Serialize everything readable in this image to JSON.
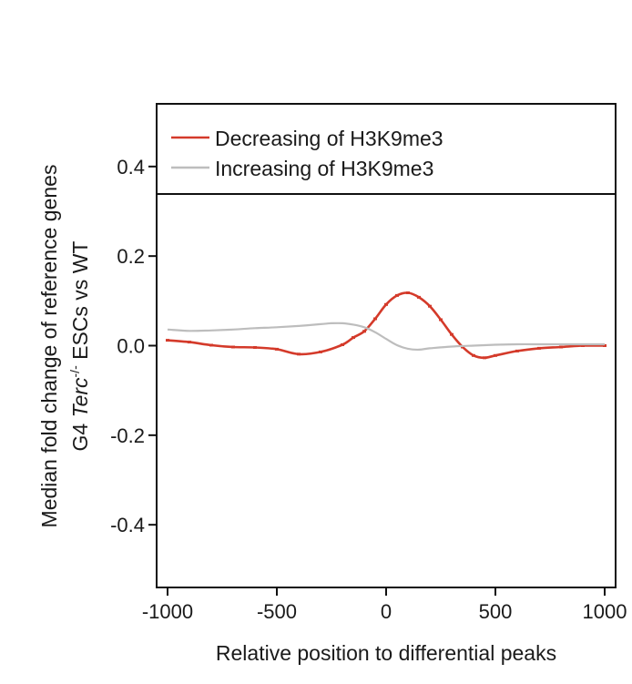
{
  "chart_data": {
    "type": "line",
    "title": "",
    "xlabel": "Relative position to differential peaks",
    "ylabel": {
      "line1": "Median fold change of reference genes",
      "line2_prefix": "G4 ",
      "line2_italic": "Terc",
      "line2_superscript": "-/-",
      "line2_suffix": " ESCs vs WT"
    },
    "xlim": [
      -1050,
      1050
    ],
    "ylim": [
      -0.54,
      0.54
    ],
    "x_ticks": [
      -1000,
      -500,
      0,
      500,
      1000
    ],
    "x_tick_labels": [
      "-1000",
      "-500",
      "0",
      "500",
      "1000"
    ],
    "y_ticks": [
      -0.4,
      -0.2,
      0.0,
      0.2,
      0.4
    ],
    "y_tick_labels": [
      "-0.4",
      "-0.2",
      "0.0",
      "0.2",
      "0.4"
    ],
    "grid": false,
    "legend_position": "top",
    "series": [
      {
        "name": "Decreasing of H3K9me3",
        "color": "#d43a2a",
        "style": "points-with-smooth-line",
        "x": [
          -1000,
          -900,
          -800,
          -700,
          -600,
          -500,
          -400,
          -300,
          -200,
          -150,
          -100,
          -50,
          0,
          50,
          100,
          150,
          200,
          250,
          300,
          350,
          400,
          450,
          500,
          600,
          700,
          800,
          900,
          1000
        ],
        "values": [
          0.012,
          0.008,
          0.001,
          -0.003,
          -0.004,
          -0.008,
          -0.019,
          -0.014,
          0.002,
          0.018,
          0.032,
          0.06,
          0.092,
          0.112,
          0.118,
          0.108,
          0.088,
          0.058,
          0.025,
          -0.003,
          -0.022,
          -0.027,
          -0.022,
          -0.012,
          -0.006,
          -0.003,
          0.0,
          0.0
        ]
      },
      {
        "name": "Increasing of H3K9me3",
        "color": "#bdbdbd",
        "style": "line",
        "x": [
          -1000,
          -900,
          -800,
          -700,
          -600,
          -500,
          -400,
          -300,
          -250,
          -200,
          -150,
          -100,
          -50,
          0,
          50,
          100,
          150,
          200,
          300,
          400,
          500,
          600,
          700,
          800,
          900,
          1000
        ],
        "values": [
          0.036,
          0.033,
          0.034,
          0.036,
          0.039,
          0.041,
          0.044,
          0.048,
          0.05,
          0.05,
          0.047,
          0.041,
          0.03,
          0.015,
          0.001,
          -0.007,
          -0.009,
          -0.006,
          -0.002,
          0.0,
          0.002,
          0.003,
          0.003,
          0.003,
          0.003,
          0.003
        ]
      }
    ]
  }
}
